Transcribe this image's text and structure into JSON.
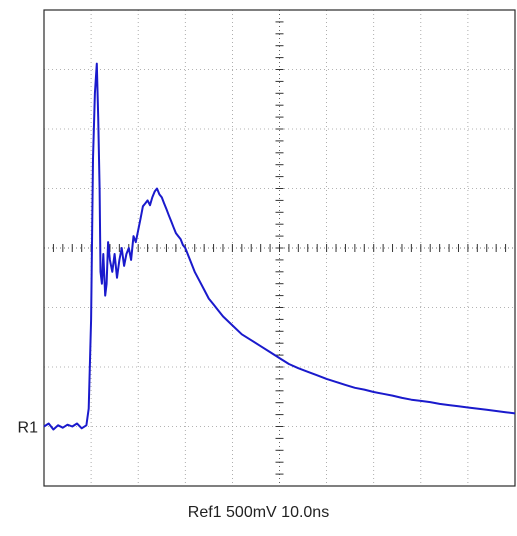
{
  "chart_data": {
    "type": "line",
    "title": "",
    "xlabel": "",
    "ylabel": "",
    "caption": "Ref1 500mV  10.0ns",
    "reference_marker": "R1",
    "reference_level": -3,
    "x_range": [
      0,
      100
    ],
    "y_range": [
      -4,
      4
    ],
    "x_divisions": 10,
    "y_divisions": 8,
    "grid": true,
    "grid_style": "dotted",
    "series_color": "#1a1acc",
    "series": [
      {
        "x": [
          0,
          1,
          2,
          3,
          4,
          5,
          6,
          7,
          8,
          9,
          9.5,
          10,
          10.4,
          10.8,
          11.2,
          11.5,
          11.8,
          12,
          12.3,
          12.6,
          13,
          13.3,
          13.6,
          14,
          14.5,
          15,
          15.5,
          16,
          16.5,
          17,
          17.5,
          18,
          18.5,
          19,
          19.5,
          20,
          20.5,
          21,
          21.5,
          22,
          22.5,
          23,
          23.5,
          24,
          24.5,
          25,
          25.5,
          26,
          26.5,
          27,
          27.5,
          28,
          28.5,
          29,
          29.5,
          30,
          31,
          32,
          33,
          34,
          35,
          36,
          37,
          38,
          40,
          42,
          44,
          46,
          48,
          50,
          52,
          54,
          56,
          58,
          60,
          62,
          64,
          66,
          68,
          70,
          72,
          74,
          76,
          78,
          80,
          82,
          84,
          86,
          88,
          90,
          92,
          94,
          96,
          98,
          100
        ],
        "y": [
          -3,
          -2.95,
          -3.05,
          -2.98,
          -3.02,
          -2.97,
          -3.0,
          -2.95,
          -3.03,
          -2.98,
          -2.7,
          -1.2,
          1.5,
          2.6,
          3.1,
          2.2,
          1.0,
          -0.4,
          -0.6,
          -0.1,
          -0.8,
          -0.6,
          0.1,
          -0.2,
          -0.4,
          -0.1,
          -0.5,
          -0.2,
          0.0,
          -0.3,
          -0.1,
          0.0,
          -0.2,
          0.2,
          0.1,
          0.3,
          0.5,
          0.7,
          0.75,
          0.8,
          0.72,
          0.85,
          0.95,
          1.0,
          0.9,
          0.85,
          0.75,
          0.65,
          0.55,
          0.45,
          0.35,
          0.25,
          0.2,
          0.15,
          0.05,
          0.0,
          -0.2,
          -0.4,
          -0.55,
          -0.7,
          -0.85,
          -0.95,
          -1.05,
          -1.15,
          -1.3,
          -1.45,
          -1.55,
          -1.65,
          -1.75,
          -1.85,
          -1.95,
          -2.02,
          -2.08,
          -2.14,
          -2.2,
          -2.25,
          -2.3,
          -2.35,
          -2.38,
          -2.42,
          -2.45,
          -2.48,
          -2.52,
          -2.55,
          -2.57,
          -2.59,
          -2.62,
          -2.64,
          -2.66,
          -2.68,
          -2.7,
          -2.72,
          -2.74,
          -2.76,
          -2.78
        ]
      }
    ]
  }
}
